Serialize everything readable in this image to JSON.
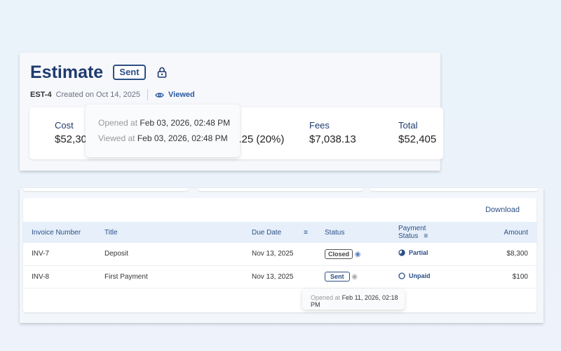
{
  "estimate": {
    "title": "Estimate",
    "status": "Sent",
    "id": "EST-4",
    "created": "Created on Oct 14, 2025",
    "viewed_label": "Viewed",
    "metrics": [
      {
        "label": "Cost",
        "value": "$52,30"
      },
      {
        "label": "",
        "value": "5.25 (20%)"
      },
      {
        "label": "Fees",
        "value": "$7,038.13"
      },
      {
        "label": "Total",
        "value": "$52,405"
      }
    ],
    "tooltip": {
      "opened_label": "Opened at",
      "opened_value": "Feb 03, 2026, 02:48 PM",
      "viewed_label": "Viewed at",
      "viewed_value": "Feb 03, 2026, 02:48 PM"
    }
  },
  "invoices": {
    "download": "Download",
    "columns": [
      "Invoice Number",
      "Title",
      "Due Date",
      "Status",
      "Payment Status",
      "Amount"
    ],
    "rows": [
      {
        "number": "INV-7",
        "title": "Deposit",
        "due": "Nov 13, 2025",
        "status": "Closed",
        "payment": "Partial",
        "amount": "$8,300"
      },
      {
        "number": "INV-8",
        "title": "First Payment",
        "due": "Nov 13, 2025",
        "status": "Sent",
        "payment": "Unpaid",
        "amount": "$100"
      }
    ],
    "tooltip": {
      "opened_label": "Opened at",
      "opened_value": "Feb 11, 2026, 02:18 PM"
    }
  },
  "colors": {
    "primary": "#1e3a6e",
    "accent": "#2a5aa0",
    "header_bg": "#e6effa"
  }
}
